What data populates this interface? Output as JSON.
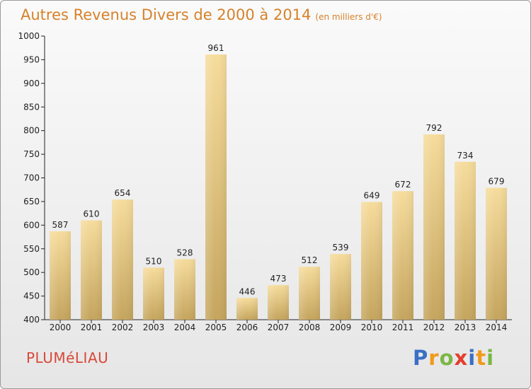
{
  "chart_data": {
    "type": "bar",
    "title": "Autres Revenus Divers de 2000 à 2014",
    "units_note": "(en milliers d'€)",
    "categories": [
      "2000",
      "2001",
      "2002",
      "2003",
      "2004",
      "2005",
      "2006",
      "2007",
      "2008",
      "2009",
      "2010",
      "2011",
      "2012",
      "2013",
      "2014"
    ],
    "values": [
      587,
      610,
      654,
      510,
      528,
      961,
      446,
      473,
      512,
      539,
      649,
      672,
      792,
      734,
      679
    ],
    "ylim": [
      400,
      1000
    ],
    "yticks": [
      400,
      450,
      500,
      550,
      600,
      650,
      700,
      750,
      800,
      850,
      900,
      950,
      1000
    ],
    "grid": false,
    "bar_color_top": "#f6dc9c",
    "bar_color_bottom": "#c5a55e"
  },
  "footer": {
    "city": "PLUMéLIAU",
    "brand_letters": [
      "P",
      "r",
      "o",
      "x",
      "i",
      "t",
      "i"
    ],
    "brand_colors": [
      "#3b6fc4",
      "#f29a1b",
      "#7ab743",
      "#e43d2e",
      "#3b6fc4",
      "#f29a1b",
      "#7ab743"
    ]
  },
  "colors": {
    "title": "#d6822a",
    "city": "#d8493a"
  }
}
